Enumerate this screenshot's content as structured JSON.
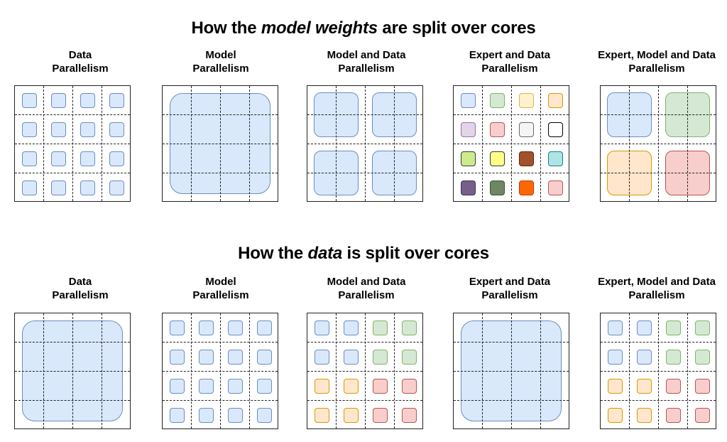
{
  "weights_section": {
    "title_prefix": "How the ",
    "title_emphasis": "model weights",
    "title_suffix": " are split over cores",
    "panels": [
      {
        "line1": "Data",
        "line2": "Parallelism",
        "pattern": "small",
        "colors": [
          "blue",
          "blue",
          "blue",
          "blue",
          "blue",
          "blue",
          "blue",
          "blue",
          "blue",
          "blue",
          "blue",
          "blue",
          "blue",
          "blue",
          "blue",
          "blue"
        ]
      },
      {
        "line1": "Model",
        "line2": "Parallelism",
        "pattern": "full",
        "colors": [
          "blue"
        ]
      },
      {
        "line1": "Model and Data",
        "line2": "Parallelism",
        "pattern": "quad",
        "colors": [
          "blue",
          "blue",
          "blue",
          "blue"
        ]
      },
      {
        "line1": "Expert and Data",
        "line2": "Parallelism",
        "pattern": "small",
        "colors": [
          "blue",
          "green",
          "yellow",
          "orange",
          "lavender",
          "pink",
          "gray",
          "white",
          "lime",
          "brightyellow",
          "brown",
          "cyan",
          "purple",
          "darkgreen",
          "brightorange",
          "pink"
        ]
      },
      {
        "line1": "Expert, Model and Data",
        "line2": "Parallelism",
        "pattern": "quad",
        "colors": [
          "blue",
          "green",
          "orange",
          "red"
        ]
      }
    ]
  },
  "data_section": {
    "title_prefix": "How the ",
    "title_emphasis": "data",
    "title_suffix": " is split over cores",
    "panels": [
      {
        "line1": "Data",
        "line2": "Parallelism",
        "pattern": "full",
        "colors": [
          "blue"
        ]
      },
      {
        "line1": "Model",
        "line2": "Parallelism",
        "pattern": "small",
        "colors": [
          "blue",
          "blue",
          "blue",
          "blue",
          "blue",
          "blue",
          "blue",
          "blue",
          "blue",
          "blue",
          "blue",
          "blue",
          "blue",
          "blue",
          "blue",
          "blue"
        ]
      },
      {
        "line1": "Model and Data",
        "line2": "Parallelism",
        "pattern": "small",
        "colors": [
          "blue",
          "blue",
          "green",
          "green",
          "blue",
          "blue",
          "green",
          "green",
          "orange",
          "orange",
          "red",
          "red",
          "orange",
          "orange",
          "red",
          "red"
        ]
      },
      {
        "line1": "Expert and Data",
        "line2": "Parallelism",
        "pattern": "full",
        "colors": [
          "blue"
        ]
      },
      {
        "line1": "Expert, Model and Data",
        "line2": "Parallelism",
        "pattern": "small",
        "colors": [
          "blue",
          "blue",
          "green",
          "green",
          "blue",
          "blue",
          "green",
          "green",
          "orange",
          "orange",
          "red",
          "red",
          "orange",
          "orange",
          "red",
          "red"
        ]
      }
    ]
  },
  "palette": {
    "blue": {
      "fill": "#dae8fc",
      "stroke": "#6c8ebf"
    },
    "green": {
      "fill": "#d5e8d4",
      "stroke": "#82b366"
    },
    "yellow": {
      "fill": "#fff2cc",
      "stroke": "#d6b656"
    },
    "orange": {
      "fill": "#ffe6cc",
      "stroke": "#d79b00"
    },
    "lavender": {
      "fill": "#e1d5e7",
      "stroke": "#9673a6"
    },
    "pink": {
      "fill": "#f8cecc",
      "stroke": "#b85450"
    },
    "red": {
      "fill": "#f8cecc",
      "stroke": "#b85450"
    },
    "gray": {
      "fill": "#f5f5f5",
      "stroke": "#666666"
    },
    "white": {
      "fill": "#ffffff",
      "stroke": "#000000"
    },
    "lime": {
      "fill": "#cdeb8b",
      "stroke": "#36393d"
    },
    "brightyellow": {
      "fill": "#ffff88",
      "stroke": "#36393d"
    },
    "brown": {
      "fill": "#a0522d",
      "stroke": "#6d1f00"
    },
    "cyan": {
      "fill": "#b0e3e6",
      "stroke": "#0e8088"
    },
    "purple": {
      "fill": "#76608a",
      "stroke": "#432d57"
    },
    "darkgreen": {
      "fill": "#6d8764",
      "stroke": "#3a5431"
    },
    "brightorange": {
      "fill": "#fa6800",
      "stroke": "#c73500"
    }
  }
}
